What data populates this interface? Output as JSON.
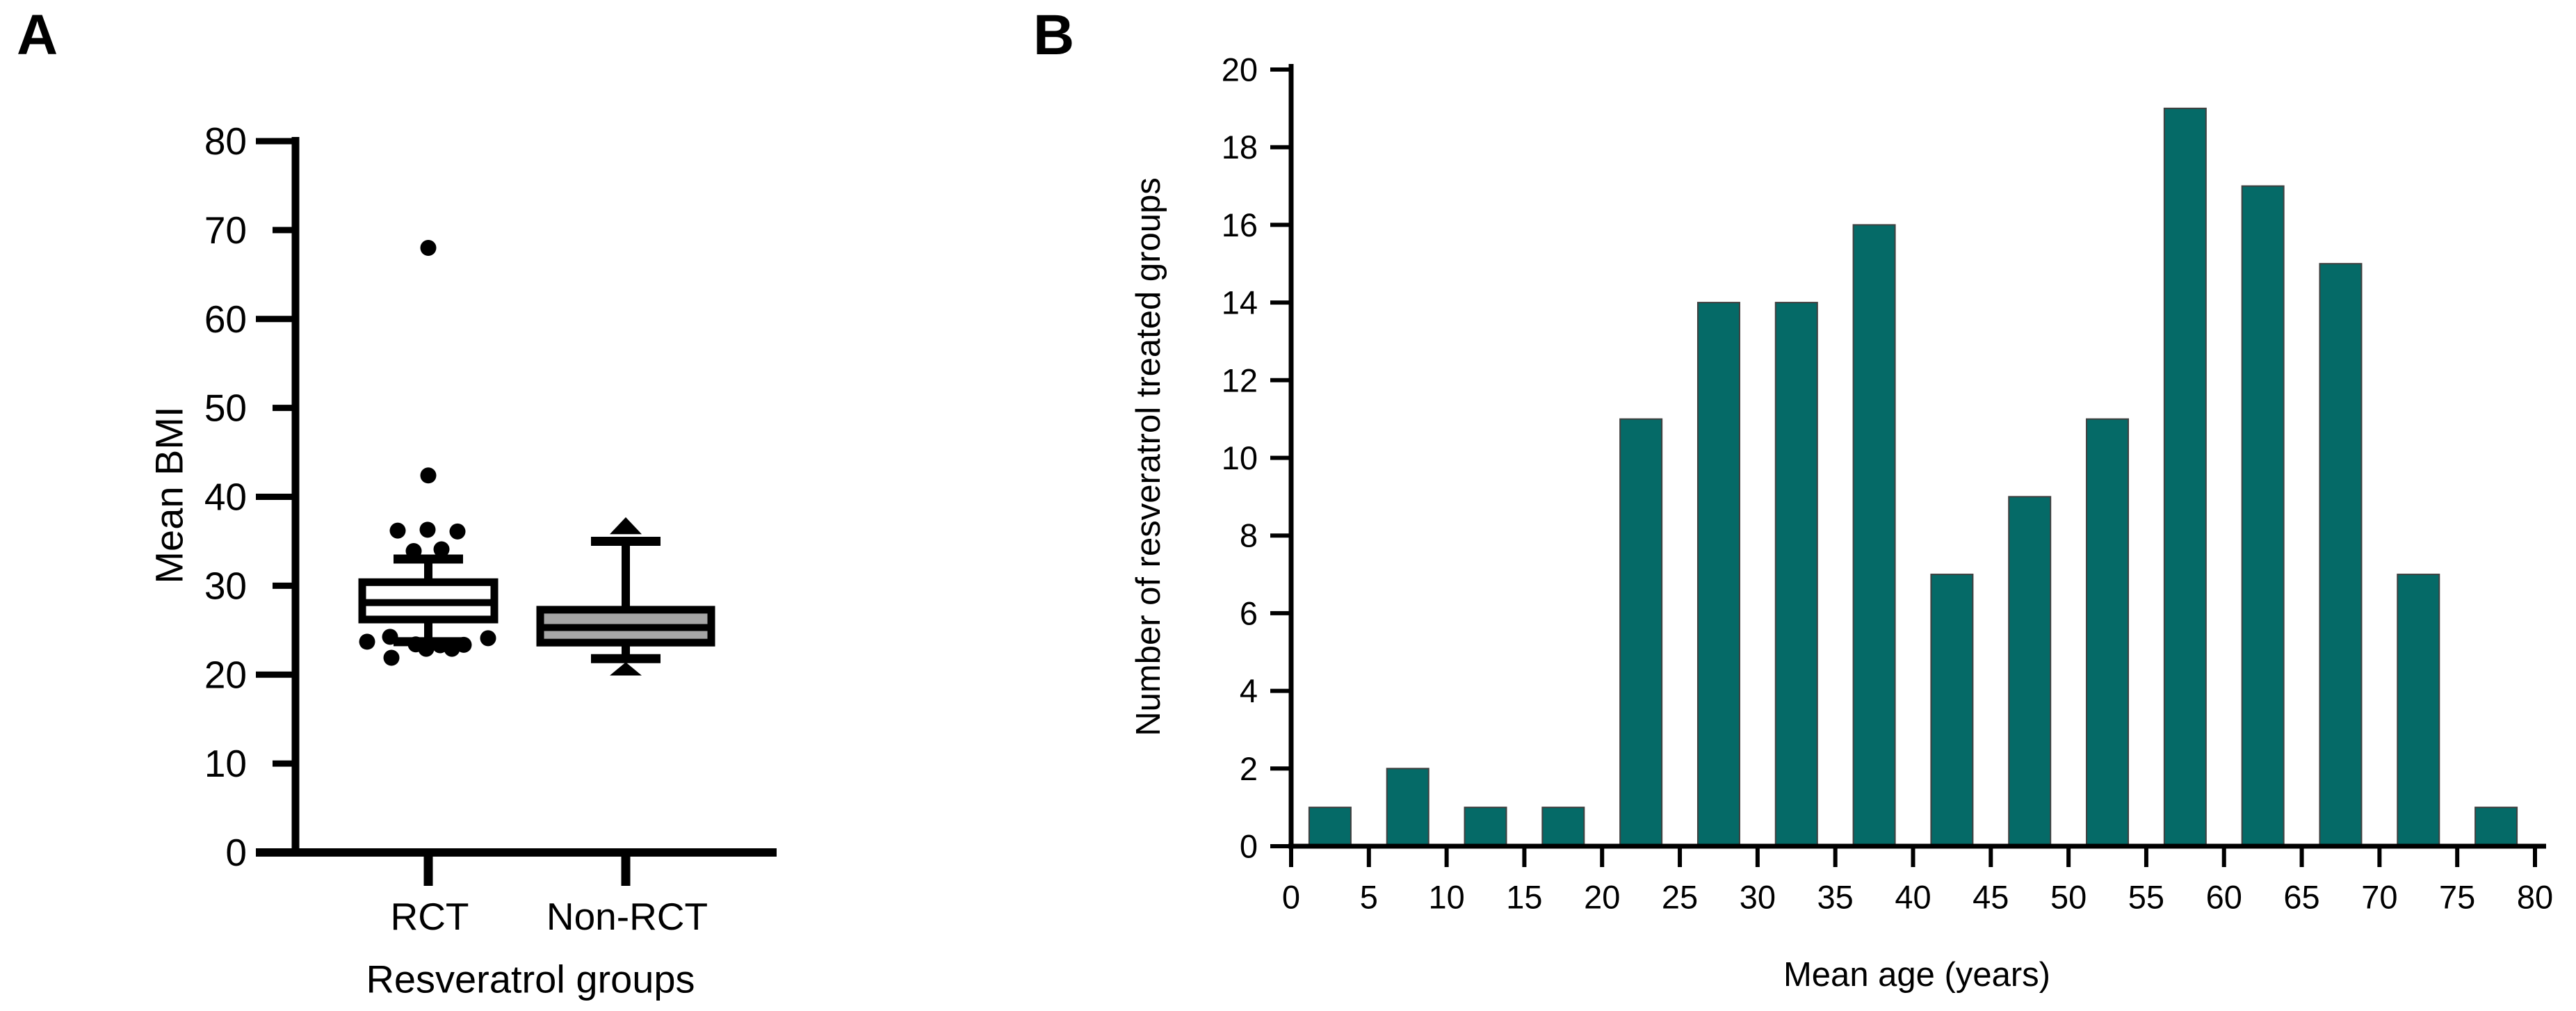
{
  "figure": {
    "background": "#ffffff",
    "panel_a": {
      "letter": "A"
    },
    "panel_b": {
      "letter": "B"
    }
  },
  "chart_data": [
    {
      "type": "box",
      "panel": "A",
      "title": "",
      "xlabel": "Resveratrol groups",
      "ylabel": "Mean BMI",
      "ylim": [
        0,
        80
      ],
      "ytick_step": 10,
      "ytick_labels": [
        "80",
        "70",
        "60",
        "50",
        "40",
        "30",
        "20",
        "10",
        "0"
      ],
      "categories": [
        "RCT",
        "Non-RCT"
      ],
      "grid": false,
      "groups": [
        {
          "label": "RCT",
          "fill": "#ffffff",
          "q1": 26.2,
          "median": 28.1,
          "q3": 30.4,
          "whisker_low": 23.7,
          "whisker_high": 33.0,
          "outlier_marker": "circle",
          "outliers_above": [
            {
              "dx": -44,
              "bmi": 36.2
            },
            {
              "dx": -1,
              "bmi": 36.3
            },
            {
              "dx": 42,
              "bmi": 36.1
            },
            {
              "dx": -21,
              "bmi": 33.9
            },
            {
              "dx": 19,
              "bmi": 34.1
            },
            {
              "dx": 0,
              "bmi": 42.4
            },
            {
              "dx": 0,
              "bmi": 68.0
            }
          ],
          "outliers_below": [
            {
              "dx": -88,
              "bmi": 23.7
            },
            {
              "dx": -55,
              "bmi": 24.25
            },
            {
              "dx": -53,
              "bmi": 21.9
            },
            {
              "dx": -18,
              "bmi": 23.4
            },
            {
              "dx": -3,
              "bmi": 22.9
            },
            {
              "dx": 17,
              "bmi": 23.3
            },
            {
              "dx": 34,
              "bmi": 22.9
            },
            {
              "dx": 51,
              "bmi": 23.35
            },
            {
              "dx": 86,
              "bmi": 24.1
            }
          ]
        },
        {
          "label": "Non-RCT",
          "fill": "#a6a6a6",
          "q1": 23.6,
          "median": 25.3,
          "q3": 27.3,
          "whisker_low": 21.8,
          "whisker_high": 35.0,
          "extreme_marker": "triangle-up",
          "extreme_high": {
            "apex": 37.7,
            "base": 35.8
          },
          "extreme_low": {
            "apex": 21.4,
            "base": 19.9
          },
          "outliers_above": [],
          "outliers_below": []
        }
      ]
    },
    {
      "type": "bar",
      "panel": "B",
      "title": "",
      "xlabel": "Mean age (years)",
      "ylabel": "Number of resveratrol treated groups",
      "xlim": [
        0,
        80
      ],
      "xtick_step": 5,
      "xtick_labels": [
        "0",
        "5",
        "10",
        "15",
        "20",
        "25",
        "30",
        "35",
        "40",
        "45",
        "50",
        "55",
        "60",
        "65",
        "70",
        "75",
        "80"
      ],
      "ylim": [
        0,
        20
      ],
      "ytick_step": 2,
      "ytick_labels": [
        "20",
        "18",
        "16",
        "14",
        "12",
        "10",
        "8",
        "6",
        "4",
        "2",
        "0"
      ],
      "grid": false,
      "legend": null,
      "bin_width": 5,
      "bin_centers": [
        2.5,
        7.5,
        12.5,
        17.5,
        22.5,
        27.5,
        32.5,
        37.5,
        42.5,
        47.5,
        52.5,
        57.5,
        62.5,
        67.5,
        72.5,
        77.5
      ],
      "values": [
        1,
        2,
        1,
        1,
        11,
        14,
        14,
        16,
        7,
        9,
        11,
        19,
        17,
        15,
        7,
        1
      ],
      "bar_color": "#056a67",
      "bar_edge_color": "#3f3f3f",
      "axis_color": "#000000"
    }
  ]
}
